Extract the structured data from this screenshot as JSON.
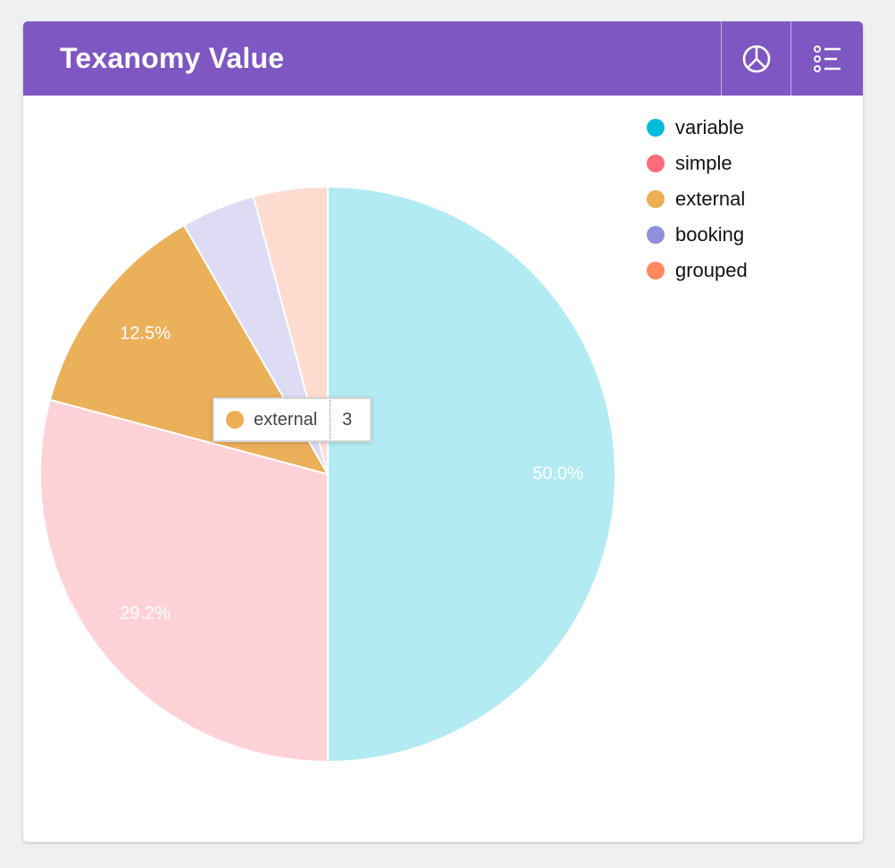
{
  "card": {
    "title": "Texanomy Value",
    "header_color": "#7e57c2",
    "buttons": [
      {
        "name": "pie-chart-icon"
      },
      {
        "name": "list-icon"
      }
    ]
  },
  "chart_data": {
    "type": "pie",
    "title": "Texanomy Value",
    "categories": [
      "variable",
      "simple",
      "external",
      "booking",
      "grouped"
    ],
    "values": [
      12,
      7,
      3,
      1,
      1
    ],
    "percent_labels": [
      "50.0%",
      "29.2%",
      "12.5%",
      "",
      ""
    ],
    "legend_colors": [
      "#00bcd9",
      "#ff6b7a",
      "#ebae52",
      "#8f8fdb",
      "#ff875f"
    ],
    "slice_colors": [
      "#b3ebf3",
      "#ffd2d8",
      "#ebb05a",
      "#dddcf4",
      "#ffdbd0"
    ],
    "legend_position": "top-right"
  },
  "tooltip": {
    "label": "external",
    "value": "3",
    "color": "#ebae52"
  }
}
